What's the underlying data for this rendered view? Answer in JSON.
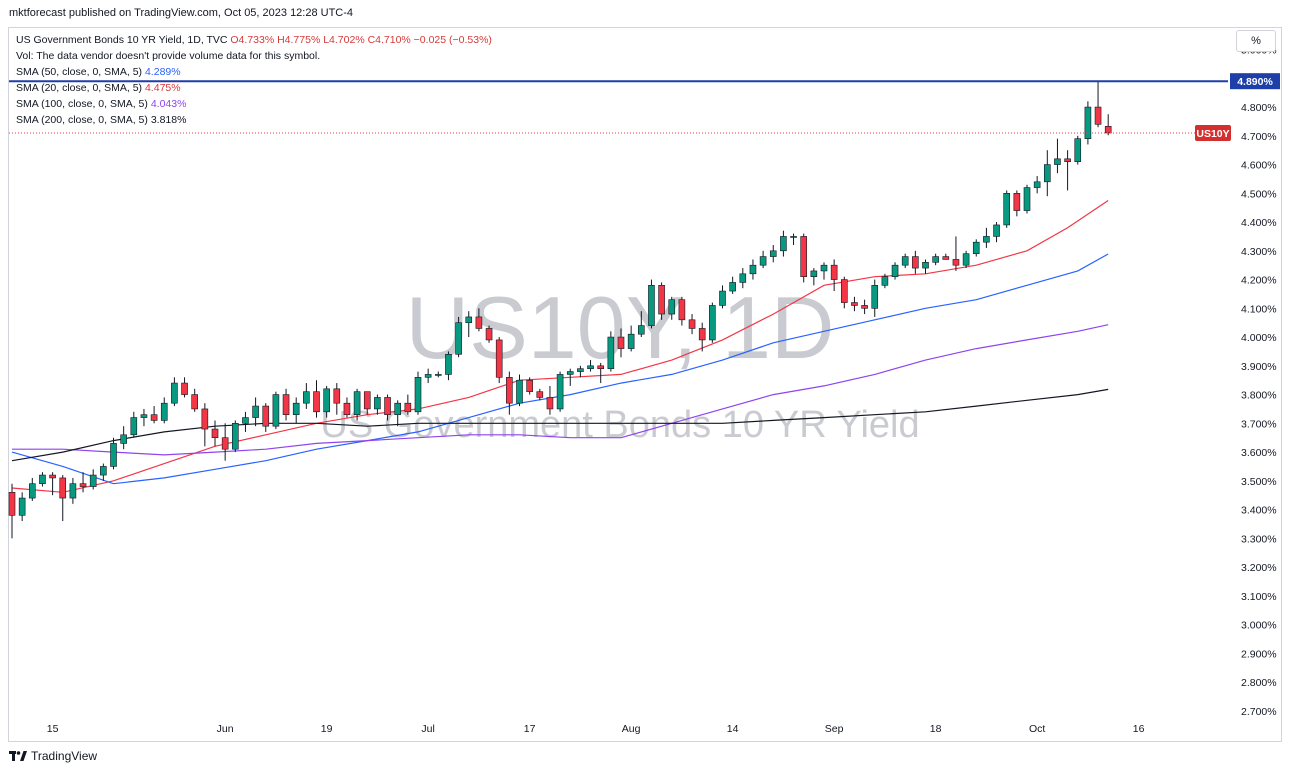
{
  "publisher_line": "mktforecast published on TradingView.com, Oct 05, 2023 12:28 UTC-4",
  "legend": {
    "title": "US Government Bonds 10 YR Yield, 1D, TVC",
    "ohlc": "O4.733% H4.775% L4.702% C4.710% −0.025 (−0.53%)",
    "vol": "Vol: The data vendor doesn't provide volume data for this symbol.",
    "sma50_label": "SMA (50, close, 0, SMA, 5)",
    "sma50_value": "4.289%",
    "sma20_label": "SMA (20, close, 0, SMA, 5)",
    "sma20_value": "4.475%",
    "sma100_label": "SMA (100, close, 0, SMA, 5)",
    "sma100_value": "4.043%",
    "sma200_label": "SMA (200, close, 0, SMA, 5)",
    "sma200_value": "3.818%"
  },
  "scale_button": "%",
  "footer_brand": "TradingView",
  "colors": {
    "up": "#089981",
    "down": "#f23645",
    "sma20": "#f23645",
    "sma50": "#2962ff",
    "sma100": "#8e44ef",
    "sma200": "#131722",
    "hline": "#1e3fa8",
    "watermark": "#c9cbd1"
  },
  "chart_data": {
    "type": "candlestick",
    "watermark_symbol": "US10Y, 1D",
    "watermark_name": "US Government Bonds 10 YR Yield",
    "price_axis": {
      "ylim": [
        2.675,
        5.075
      ],
      "ticks": [
        "5.000%",
        "4.900%",
        "4.800%",
        "4.700%",
        "4.600%",
        "4.500%",
        "4.400%",
        "4.300%",
        "4.200%",
        "4.100%",
        "4.000%",
        "3.900%",
        "3.800%",
        "3.700%",
        "3.600%",
        "3.500%",
        "3.400%",
        "3.300%",
        "3.200%",
        "3.100%",
        "3.000%",
        "2.900%",
        "2.800%",
        "2.700%"
      ],
      "tick_values": [
        5.0,
        4.9,
        4.8,
        4.7,
        4.6,
        4.5,
        4.4,
        4.3,
        4.2,
        4.1,
        4.0,
        3.9,
        3.8,
        3.7,
        3.6,
        3.5,
        3.4,
        3.3,
        3.2,
        3.1,
        3.0,
        2.9,
        2.8,
        2.7
      ]
    },
    "time_axis": {
      "labels": [
        "15",
        "Jun",
        "19",
        "Jul",
        "17",
        "Aug",
        "14",
        "Sep",
        "18",
        "Oct",
        "16"
      ],
      "label_bar_index": [
        4,
        21,
        31,
        41,
        51,
        61,
        71,
        81,
        91,
        101,
        111
      ]
    },
    "horizontal_line": {
      "value": 4.89,
      "label": "4.890%"
    },
    "last_price": {
      "value": 4.71,
      "label": "US10Y"
    },
    "candles": [
      [
        3.46,
        3.49,
        3.3,
        3.38
      ],
      [
        3.38,
        3.46,
        3.36,
        3.44
      ],
      [
        3.44,
        3.51,
        3.43,
        3.49
      ],
      [
        3.49,
        3.53,
        3.48,
        3.52
      ],
      [
        3.52,
        3.53,
        3.45,
        3.51
      ],
      [
        3.51,
        3.52,
        3.36,
        3.44
      ],
      [
        3.44,
        3.51,
        3.42,
        3.49
      ],
      [
        3.49,
        3.53,
        3.46,
        3.48
      ],
      [
        3.48,
        3.54,
        3.47,
        3.52
      ],
      [
        3.52,
        3.56,
        3.5,
        3.55
      ],
      [
        3.55,
        3.65,
        3.54,
        3.63
      ],
      [
        3.63,
        3.69,
        3.61,
        3.66
      ],
      [
        3.66,
        3.74,
        3.65,
        3.72
      ],
      [
        3.72,
        3.75,
        3.69,
        3.73
      ],
      [
        3.73,
        3.76,
        3.7,
        3.71
      ],
      [
        3.71,
        3.79,
        3.7,
        3.77
      ],
      [
        3.77,
        3.86,
        3.76,
        3.84
      ],
      [
        3.84,
        3.86,
        3.79,
        3.8
      ],
      [
        3.8,
        3.82,
        3.74,
        3.75
      ],
      [
        3.75,
        3.77,
        3.62,
        3.68
      ],
      [
        3.68,
        3.71,
        3.62,
        3.65
      ],
      [
        3.65,
        3.7,
        3.57,
        3.61
      ],
      [
        3.61,
        3.71,
        3.6,
        3.7
      ],
      [
        3.7,
        3.74,
        3.67,
        3.72
      ],
      [
        3.72,
        3.79,
        3.69,
        3.76
      ],
      [
        3.76,
        3.77,
        3.67,
        3.69
      ],
      [
        3.69,
        3.81,
        3.68,
        3.8
      ],
      [
        3.8,
        3.82,
        3.71,
        3.73
      ],
      [
        3.73,
        3.79,
        3.7,
        3.77
      ],
      [
        3.77,
        3.84,
        3.75,
        3.81
      ],
      [
        3.81,
        3.85,
        3.72,
        3.74
      ],
      [
        3.74,
        3.83,
        3.72,
        3.82
      ],
      [
        3.82,
        3.84,
        3.73,
        3.77
      ],
      [
        3.77,
        3.79,
        3.72,
        3.73
      ],
      [
        3.73,
        3.82,
        3.71,
        3.81
      ],
      [
        3.81,
        3.81,
        3.73,
        3.75
      ],
      [
        3.75,
        3.8,
        3.73,
        3.79
      ],
      [
        3.79,
        3.8,
        3.71,
        3.73
      ],
      [
        3.73,
        3.78,
        3.69,
        3.77
      ],
      [
        3.77,
        3.8,
        3.73,
        3.74
      ],
      [
        3.74,
        3.88,
        3.73,
        3.86
      ],
      [
        3.86,
        3.89,
        3.84,
        3.87
      ],
      [
        3.87,
        3.88,
        3.86,
        3.87
      ],
      [
        3.87,
        3.95,
        3.85,
        3.94
      ],
      [
        3.94,
        4.07,
        3.93,
        4.05
      ],
      [
        4.05,
        4.09,
        4.0,
        4.07
      ],
      [
        4.07,
        4.1,
        4.02,
        4.03
      ],
      [
        4.03,
        4.04,
        3.98,
        3.99
      ],
      [
        3.99,
        4.0,
        3.84,
        3.86
      ],
      [
        3.86,
        3.88,
        3.73,
        3.77
      ],
      [
        3.77,
        3.87,
        3.76,
        3.85
      ],
      [
        3.85,
        3.86,
        3.8,
        3.81
      ],
      [
        3.81,
        3.82,
        3.78,
        3.79
      ],
      [
        3.79,
        3.83,
        3.73,
        3.75
      ],
      [
        3.75,
        3.88,
        3.74,
        3.87
      ],
      [
        3.87,
        3.89,
        3.83,
        3.88
      ],
      [
        3.88,
        3.9,
        3.86,
        3.89
      ],
      [
        3.89,
        3.92,
        3.88,
        3.9
      ],
      [
        3.9,
        3.91,
        3.84,
        3.89
      ],
      [
        3.89,
        4.02,
        3.88,
        4.0
      ],
      [
        4.0,
        4.03,
        3.93,
        3.96
      ],
      [
        3.96,
        4.04,
        3.95,
        4.01
      ],
      [
        4.01,
        4.09,
        4.0,
        4.04
      ],
      [
        4.04,
        4.2,
        4.03,
        4.18
      ],
      [
        4.18,
        4.19,
        4.06,
        4.08
      ],
      [
        4.08,
        4.14,
        4.06,
        4.13
      ],
      [
        4.13,
        4.14,
        4.04,
        4.06
      ],
      [
        4.06,
        4.08,
        4.01,
        4.03
      ],
      [
        4.03,
        4.05,
        3.95,
        3.99
      ],
      [
        3.99,
        4.12,
        3.98,
        4.11
      ],
      [
        4.11,
        4.18,
        4.1,
        4.16
      ],
      [
        4.16,
        4.21,
        4.15,
        4.19
      ],
      [
        4.19,
        4.24,
        4.17,
        4.22
      ],
      [
        4.22,
        4.27,
        4.2,
        4.25
      ],
      [
        4.25,
        4.3,
        4.24,
        4.28
      ],
      [
        4.28,
        4.32,
        4.26,
        4.3
      ],
      [
        4.3,
        4.37,
        4.28,
        4.35
      ],
      [
        4.35,
        4.36,
        4.32,
        4.35
      ],
      [
        4.35,
        4.36,
        4.19,
        4.21
      ],
      [
        4.21,
        4.24,
        4.18,
        4.23
      ],
      [
        4.23,
        4.26,
        4.2,
        4.25
      ],
      [
        4.25,
        4.27,
        4.16,
        4.2
      ],
      [
        4.2,
        4.21,
        4.1,
        4.12
      ],
      [
        4.12,
        4.14,
        4.09,
        4.11
      ],
      [
        4.11,
        4.13,
        4.08,
        4.1
      ],
      [
        4.1,
        4.2,
        4.07,
        4.18
      ],
      [
        4.18,
        4.22,
        4.17,
        4.21
      ],
      [
        4.21,
        4.26,
        4.2,
        4.25
      ],
      [
        4.25,
        4.29,
        4.24,
        4.28
      ],
      [
        4.28,
        4.3,
        4.22,
        4.24
      ],
      [
        4.24,
        4.27,
        4.22,
        4.26
      ],
      [
        4.26,
        4.29,
        4.25,
        4.28
      ],
      [
        4.28,
        4.29,
        4.27,
        4.27
      ],
      [
        4.27,
        4.35,
        4.23,
        4.25
      ],
      [
        4.25,
        4.3,
        4.24,
        4.29
      ],
      [
        4.29,
        4.34,
        4.28,
        4.33
      ],
      [
        4.33,
        4.38,
        4.31,
        4.35
      ],
      [
        4.35,
        4.4,
        4.33,
        4.39
      ],
      [
        4.39,
        4.51,
        4.38,
        4.5
      ],
      [
        4.5,
        4.51,
        4.42,
        4.44
      ],
      [
        4.44,
        4.53,
        4.43,
        4.52
      ],
      [
        4.52,
        4.56,
        4.5,
        4.54
      ],
      [
        4.54,
        4.65,
        4.49,
        4.6
      ],
      [
        4.6,
        4.69,
        4.57,
        4.62
      ],
      [
        4.62,
        4.65,
        4.51,
        4.61
      ],
      [
        4.61,
        4.7,
        4.6,
        4.69
      ],
      [
        4.69,
        4.82,
        4.67,
        4.8
      ],
      [
        4.8,
        4.89,
        4.73,
        4.74
      ],
      [
        4.733,
        4.775,
        4.702,
        4.71
      ]
    ],
    "series": [
      {
        "name": "SMA (20, close, 0, SMA, 5)",
        "color": "#f23645",
        "points": [
          [
            0,
            3.475
          ],
          [
            5,
            3.46
          ],
          [
            10,
            3.5
          ],
          [
            15,
            3.56
          ],
          [
            20,
            3.62
          ],
          [
            25,
            3.66
          ],
          [
            30,
            3.7
          ],
          [
            35,
            3.73
          ],
          [
            40,
            3.75
          ],
          [
            45,
            3.79
          ],
          [
            50,
            3.85
          ],
          [
            55,
            3.86
          ],
          [
            60,
            3.87
          ],
          [
            65,
            3.92
          ],
          [
            70,
            3.99
          ],
          [
            75,
            4.08
          ],
          [
            80,
            4.18
          ],
          [
            85,
            4.21
          ],
          [
            90,
            4.22
          ],
          [
            95,
            4.25
          ],
          [
            100,
            4.3
          ],
          [
            104,
            4.38
          ],
          [
            108,
            4.475
          ]
        ]
      },
      {
        "name": "SMA (50, close, 0, SMA, 5)",
        "color": "#2962ff",
        "points": [
          [
            0,
            3.6
          ],
          [
            5,
            3.55
          ],
          [
            10,
            3.49
          ],
          [
            15,
            3.51
          ],
          [
            20,
            3.54
          ],
          [
            25,
            3.57
          ],
          [
            30,
            3.61
          ],
          [
            35,
            3.64
          ],
          [
            40,
            3.67
          ],
          [
            45,
            3.72
          ],
          [
            50,
            3.77
          ],
          [
            55,
            3.8
          ],
          [
            60,
            3.84
          ],
          [
            65,
            3.87
          ],
          [
            70,
            3.92
          ],
          [
            75,
            3.98
          ],
          [
            80,
            4.02
          ],
          [
            85,
            4.06
          ],
          [
            90,
            4.1
          ],
          [
            95,
            4.13
          ],
          [
            100,
            4.18
          ],
          [
            105,
            4.23
          ],
          [
            108,
            4.289
          ]
        ]
      },
      {
        "name": "SMA (100, close, 0, SMA, 5)",
        "color": "#8e44ef",
        "points": [
          [
            0,
            3.61
          ],
          [
            5,
            3.61
          ],
          [
            10,
            3.6
          ],
          [
            15,
            3.59
          ],
          [
            20,
            3.6
          ],
          [
            25,
            3.61
          ],
          [
            30,
            3.63
          ],
          [
            35,
            3.64
          ],
          [
            40,
            3.65
          ],
          [
            45,
            3.66
          ],
          [
            50,
            3.66
          ],
          [
            55,
            3.65
          ],
          [
            60,
            3.65
          ],
          [
            65,
            3.7
          ],
          [
            70,
            3.75
          ],
          [
            75,
            3.8
          ],
          [
            80,
            3.83
          ],
          [
            85,
            3.87
          ],
          [
            90,
            3.92
          ],
          [
            95,
            3.96
          ],
          [
            100,
            3.99
          ],
          [
            105,
            4.02
          ],
          [
            108,
            4.043
          ]
        ]
      },
      {
        "name": "SMA (200, close, 0, SMA, 5)",
        "color": "#131722",
        "points": [
          [
            0,
            3.57
          ],
          [
            5,
            3.6
          ],
          [
            10,
            3.64
          ],
          [
            15,
            3.67
          ],
          [
            20,
            3.69
          ],
          [
            25,
            3.7
          ],
          [
            30,
            3.7
          ],
          [
            35,
            3.69
          ],
          [
            40,
            3.7
          ],
          [
            45,
            3.7
          ],
          [
            50,
            3.7
          ],
          [
            55,
            3.7
          ],
          [
            60,
            3.7
          ],
          [
            65,
            3.7
          ],
          [
            70,
            3.7
          ],
          [
            75,
            3.71
          ],
          [
            80,
            3.72
          ],
          [
            85,
            3.73
          ],
          [
            90,
            3.74
          ],
          [
            95,
            3.76
          ],
          [
            100,
            3.78
          ],
          [
            105,
            3.8
          ],
          [
            108,
            3.818
          ]
        ]
      }
    ]
  }
}
